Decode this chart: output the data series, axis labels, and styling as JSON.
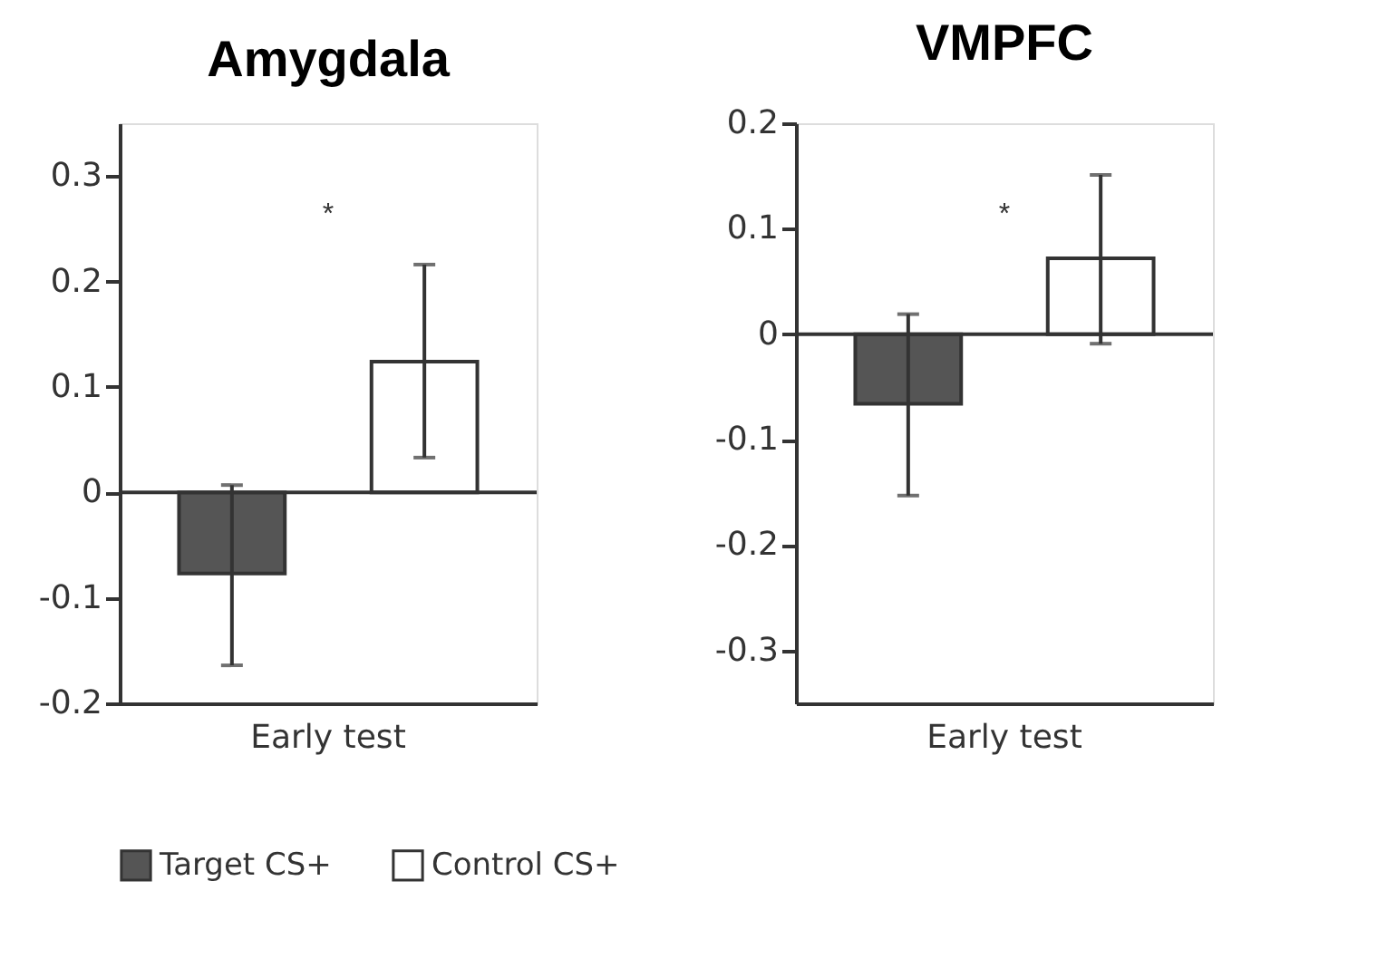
{
  "chart_data": [
    {
      "type": "bar",
      "title": "Amygdala",
      "categories": [
        "Early test"
      ],
      "series": [
        {
          "name": "Target CS+",
          "color": "#555555",
          "values": [
            -0.077
          ],
          "errors": [
            [
              -0.164,
              0.007
            ]
          ]
        },
        {
          "name": "Control CS+",
          "color": "#ffffff",
          "values": [
            0.124
          ],
          "errors": [
            [
              0.033,
              0.216
            ]
          ]
        }
      ],
      "ylim": [
        -0.2,
        0.35
      ],
      "yticks": [
        -0.2,
        -0.1,
        0,
        0.1,
        0.2,
        0.3
      ],
      "ref_lines": [
        {
          "axis": "y",
          "value": 0,
          "label": null
        }
      ],
      "annotations": [
        "*"
      ],
      "legend": "bottom",
      "grid": false
    },
    {
      "type": "bar",
      "title": "VMPFC",
      "categories": [
        "Early test"
      ],
      "series": [
        {
          "color": "#555555",
          "values": [
            -0.066
          ],
          "errors": [
            [
              -0.153,
              0.019
            ]
          ]
        },
        {
          "color": "#ffffff",
          "values": [
            0.072
          ],
          "errors": [
            [
              -0.009,
              0.151
            ]
          ]
        }
      ],
      "ylim": [
        -0.35,
        0.2
      ],
      "yticks": [
        -0.3,
        -0.2,
        -0.1,
        0,
        0.1,
        0.2
      ],
      "ref_lines": [
        {
          "axis": "y",
          "value": 0,
          "label": null
        }
      ],
      "annotations": [
        "*"
      ],
      "grid": false
    }
  ]
}
